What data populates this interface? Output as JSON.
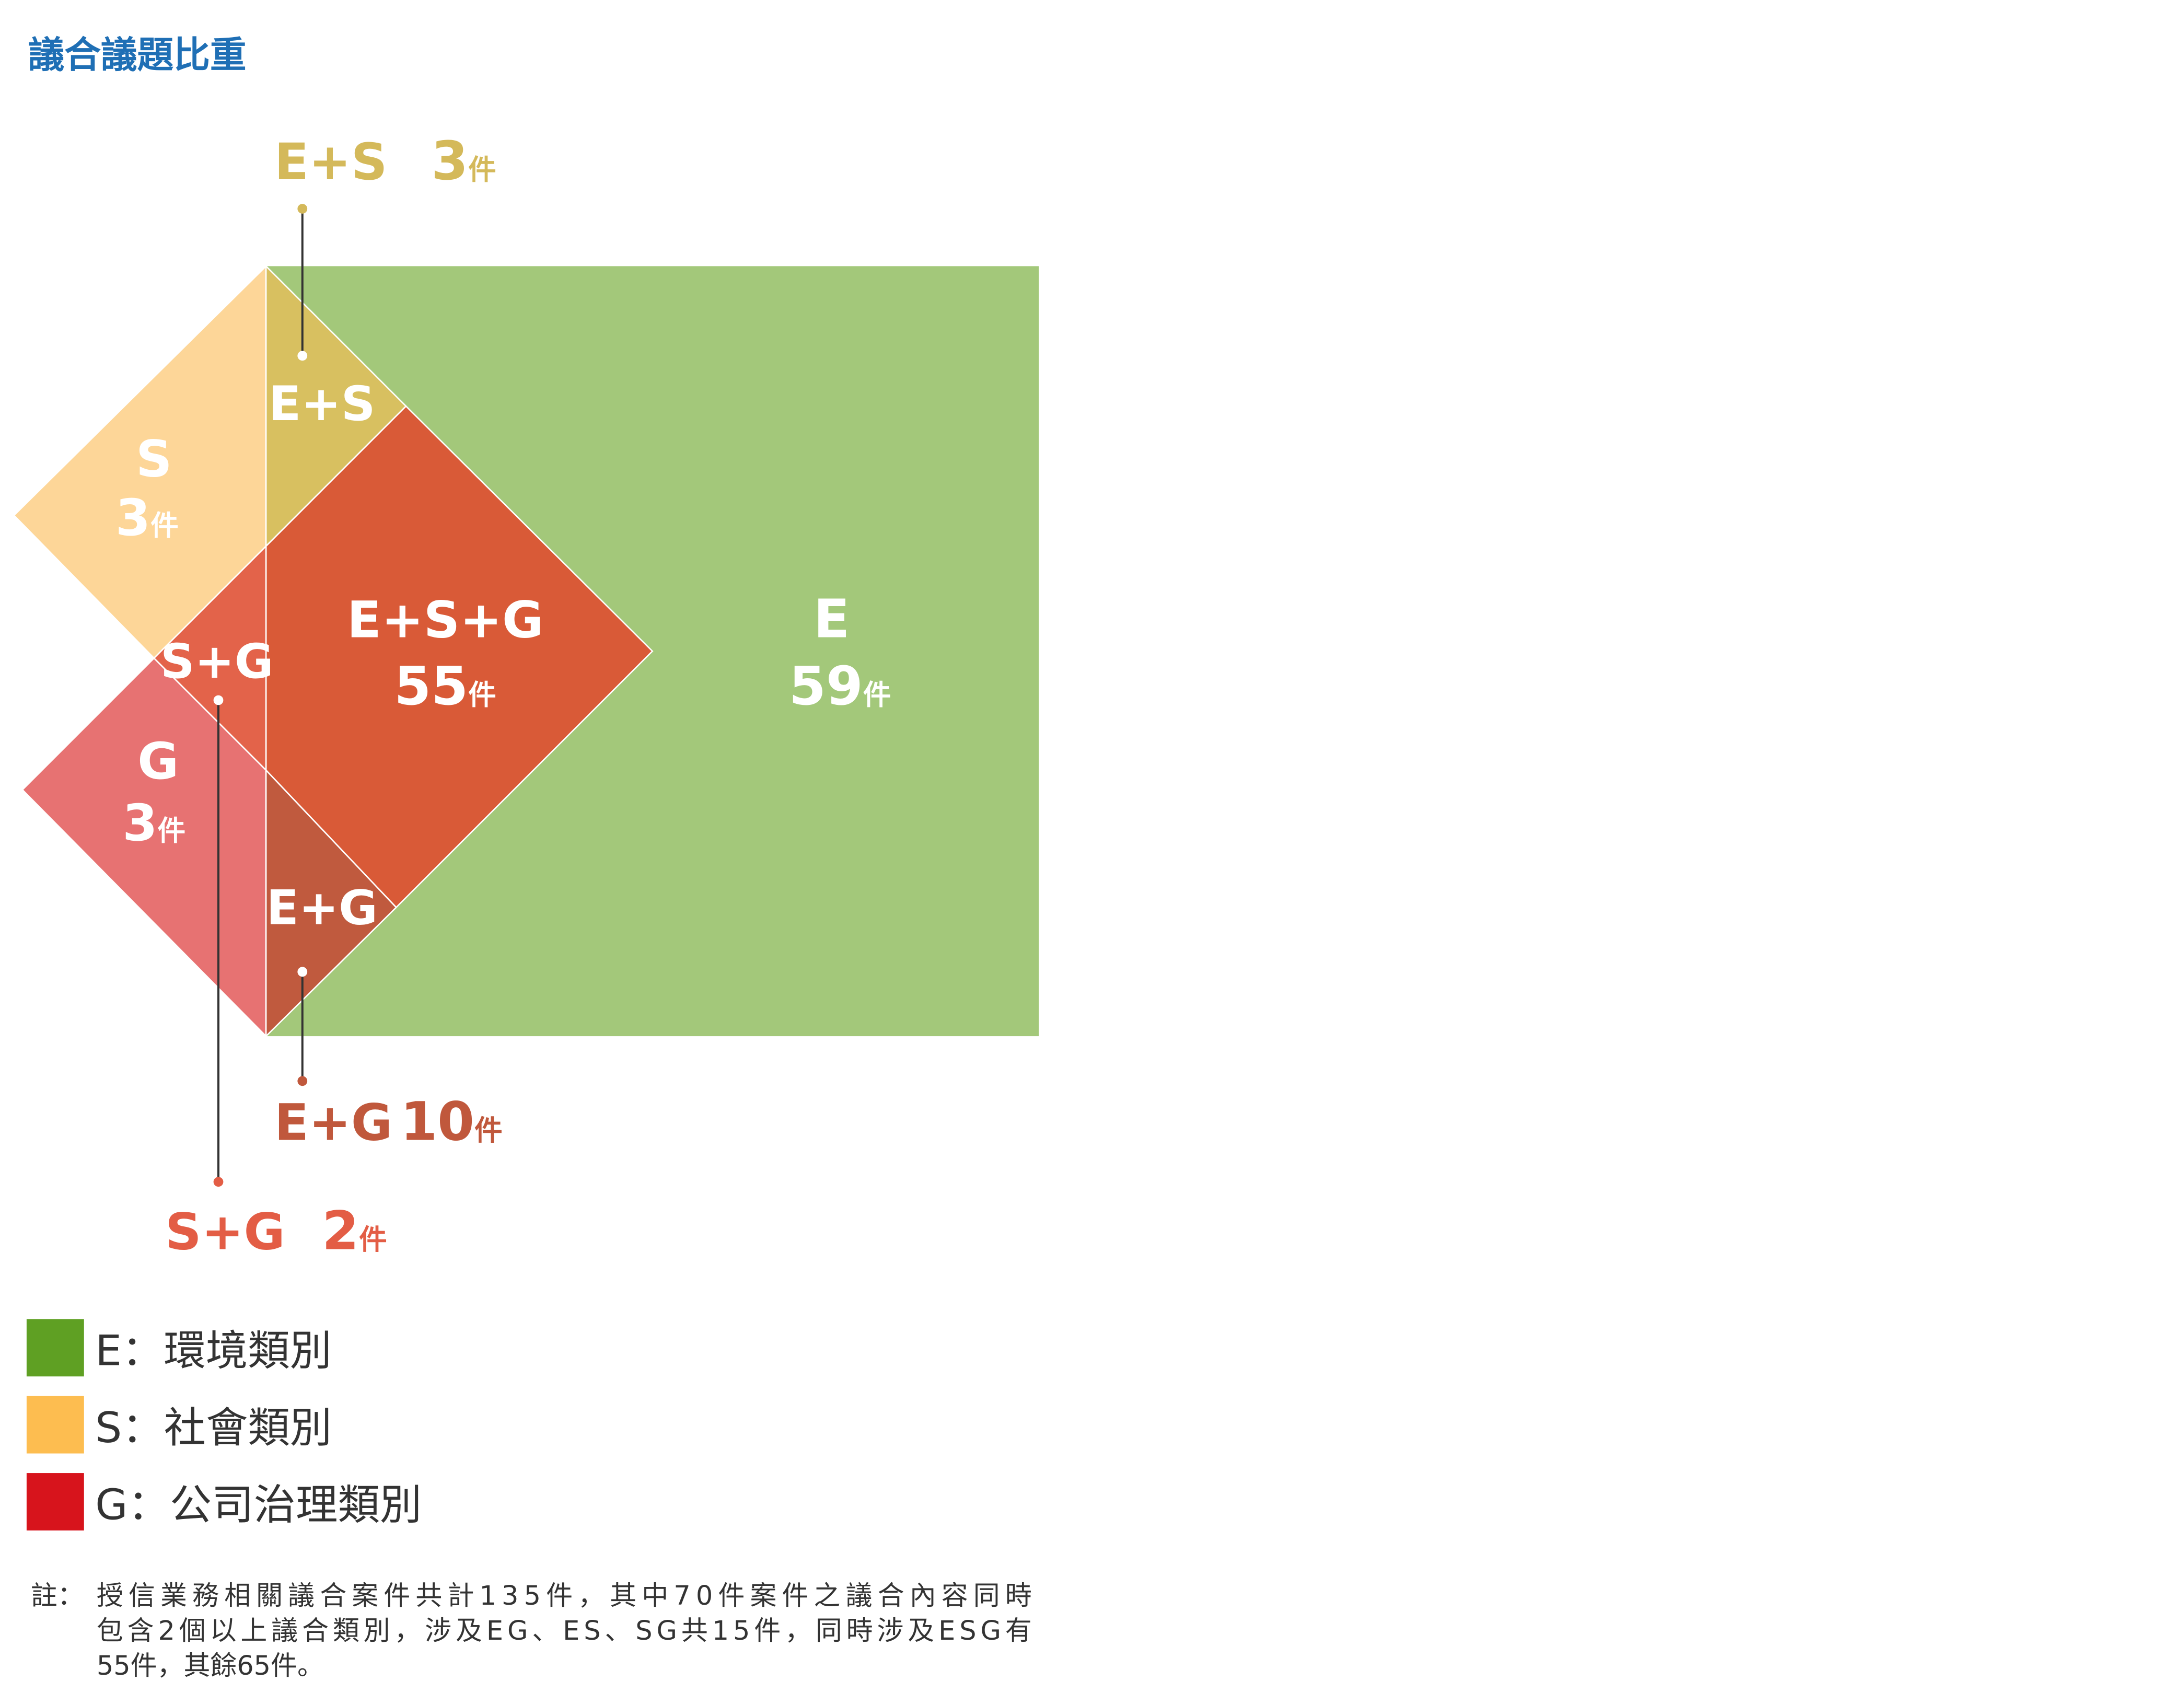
{
  "title": "議合議題比重",
  "unit": "件",
  "regions": {
    "E": {
      "label": "E",
      "count": "59",
      "color": "#a3c87a"
    },
    "S": {
      "label": "S",
      "count": "3",
      "color": "#fdd698"
    },
    "G": {
      "label": "G",
      "count": "3",
      "color": "#e77272"
    },
    "ES": {
      "label": "E+S",
      "count": "3",
      "color": "#d8c060",
      "callout_color": "#d4b95a"
    },
    "EG": {
      "label": "E+G",
      "count": "10",
      "color": "#c05a3e",
      "callout_color": "#c0583c"
    },
    "SG": {
      "label": "S+G",
      "count": "2",
      "color": "#e3634a",
      "callout_color": "#e35d45"
    },
    "ESG": {
      "label": "E+S+G",
      "count": "55",
      "color": "#d95a37"
    }
  },
  "legend": [
    {
      "label": "E：環境類別",
      "color": "#5fa023"
    },
    {
      "label": "S：社會類別",
      "color": "#fdbd50"
    },
    {
      "label": "G：公司治理類別",
      "color": "#d7141c"
    }
  ],
  "note": {
    "prefix": "註：",
    "lines": [
      "授信業務相關議合案件共計135件，其中70件案件之議合內容同時",
      "包含2個以上議合類別，涉及EG、ES、SG共15件，同時涉及ESG有",
      "55件，其餘65件。"
    ]
  },
  "title_color": "#1f6fb5"
}
